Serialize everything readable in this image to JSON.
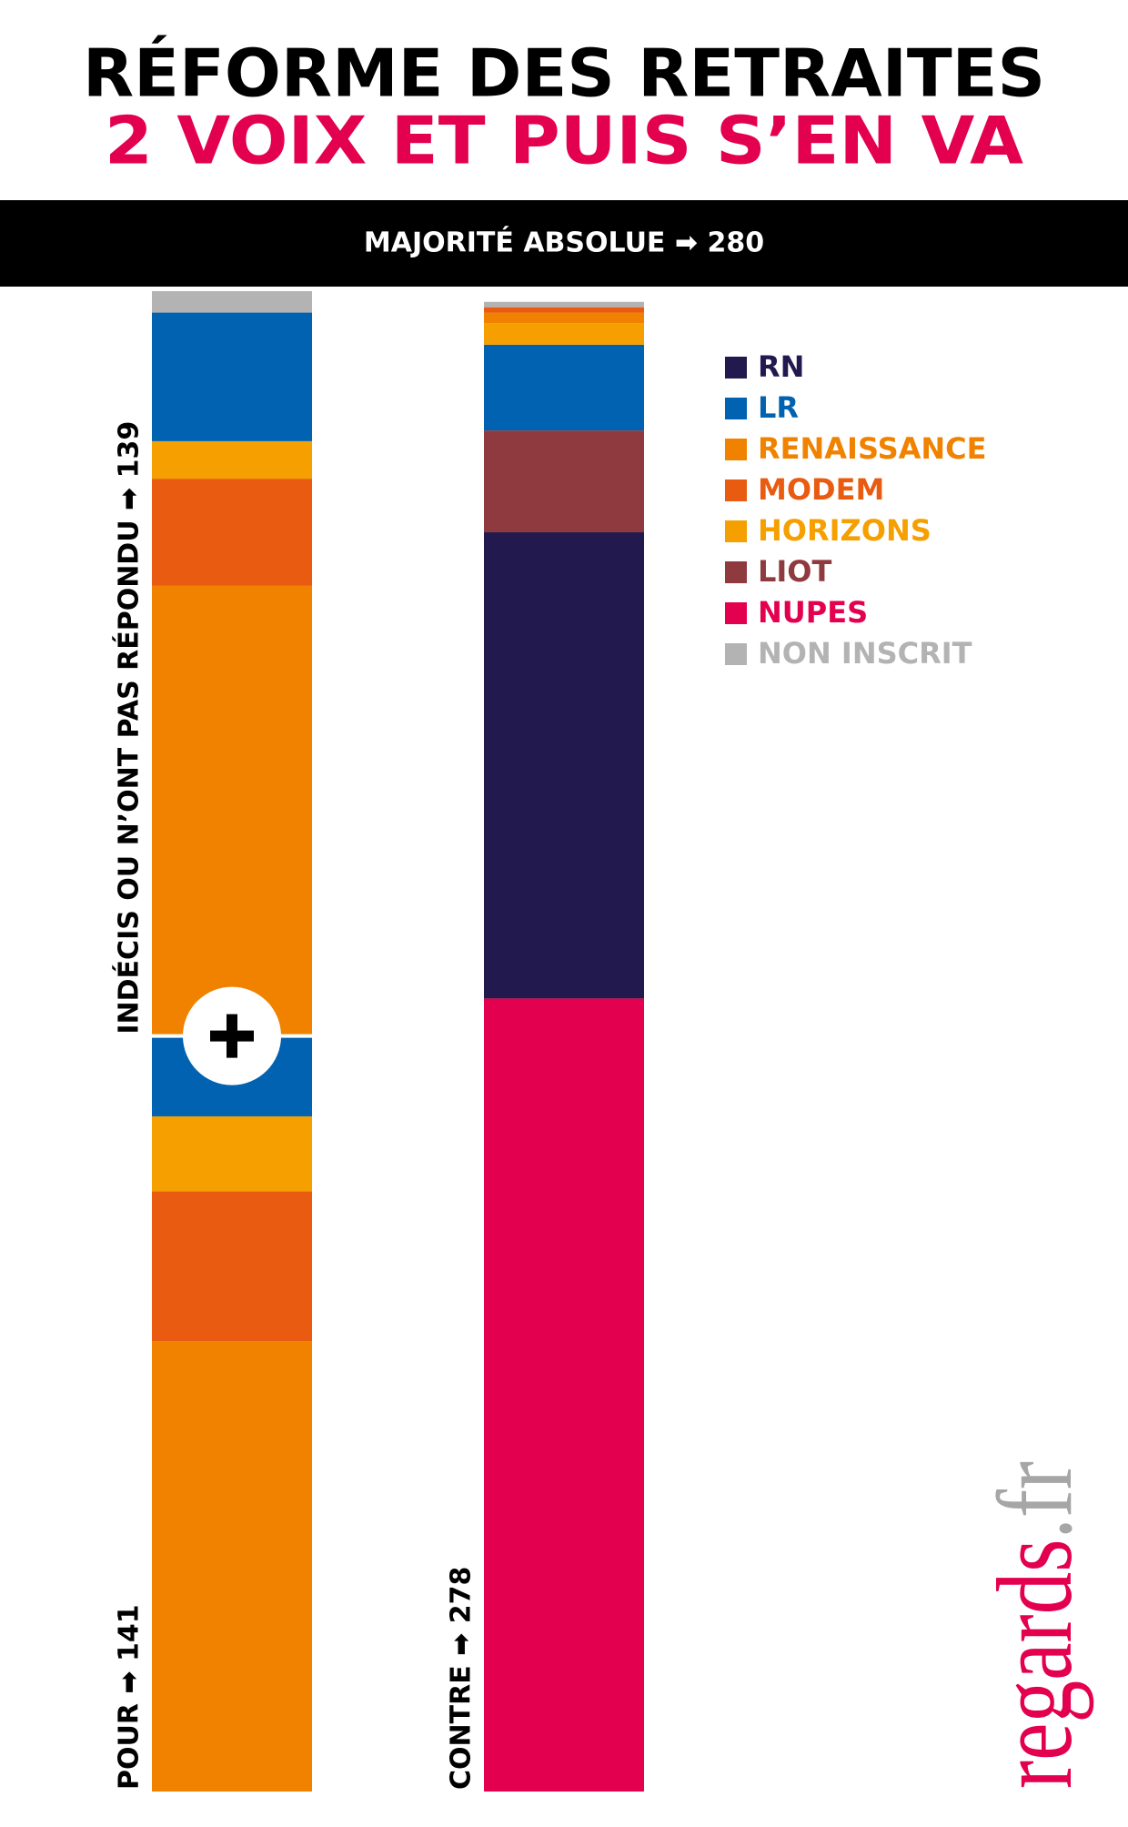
{
  "chart_data": {
    "type": "stacked-bar",
    "title": "RÉFORME DES RETRAITES",
    "subtitle": "2 VOIX ET PUIS S’EN VA",
    "banner": "MAJORITÉ ABSOLUE ➡ 280",
    "series": [
      {
        "name": "RN",
        "color": "#221a4f"
      },
      {
        "name": "LR",
        "color": "#0062b0"
      },
      {
        "name": "RENAISSANCE",
        "color": "#f08200"
      },
      {
        "name": "MODEM",
        "color": "#e85b10"
      },
      {
        "name": "HORIZONS",
        "color": "#f5a000"
      },
      {
        "name": "LIOT",
        "color": "#8e3a3f"
      },
      {
        "name": "NUPES",
        "color": "#e3004f"
      },
      {
        "name": "NON INSCRIT",
        "color": "#b3b3b3"
      }
    ],
    "stacks": [
      {
        "label": "POUR ➡ 141",
        "segments": [
          {
            "name": "RENAISSANCE",
            "value": 84
          },
          {
            "name": "MODEM",
            "value": 28
          },
          {
            "name": "HORIZONS",
            "value": 14
          },
          {
            "name": "LR",
            "value": 15
          }
        ]
      },
      {
        "label": "INDÉCIS OU N’ONT PAS RÉPONDU ➡ 139",
        "segments": [
          {
            "name": "RENAISSANCE",
            "value": 84
          },
          {
            "name": "MODEM",
            "value": 20
          },
          {
            "name": "HORIZONS",
            "value": 7
          },
          {
            "name": "LR",
            "value": 24
          },
          {
            "name": "NON INSCRIT",
            "value": 4
          }
        ]
      },
      {
        "label": "CONTRE ➡ 278",
        "segments": [
          {
            "name": "NUPES",
            "value": 148
          },
          {
            "name": "RN",
            "value": 87
          },
          {
            "name": "LIOT",
            "value": 19
          },
          {
            "name": "LR",
            "value": 16
          },
          {
            "name": "HORIZONS",
            "value": 4
          },
          {
            "name": "RENAISSANCE",
            "value": 2
          },
          {
            "name": "MODEM",
            "value": 1
          },
          {
            "name": "NON INSCRIT",
            "value": 1
          }
        ]
      }
    ],
    "logo": {
      "name": "regards",
      "tld": ".fr"
    }
  }
}
